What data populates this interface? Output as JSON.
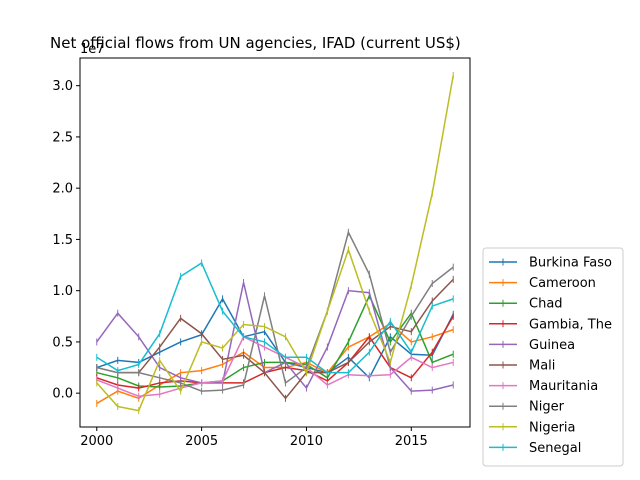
{
  "chart_data": {
    "type": "line",
    "title": "Net official flows from UN agencies, IFAD (current US$)",
    "xlabel": "",
    "ylabel": "",
    "y_offset_label": "1e7",
    "xlim": [
      1999.2,
      2017.8
    ],
    "ylim": [
      -0.33,
      3.27
    ],
    "x_ticks": [
      2000,
      2005,
      2010,
      2015
    ],
    "y_ticks": [
      0.0,
      0.5,
      1.0,
      1.5,
      2.0,
      2.5,
      3.0
    ],
    "y_tick_labels": [
      "0.0",
      "0.5",
      "1.0",
      "1.5",
      "2.0",
      "2.5",
      "3.0"
    ],
    "legend_position": "right",
    "grid": false,
    "x": [
      2000,
      2001,
      2002,
      2003,
      2004,
      2005,
      2006,
      2007,
      2008,
      2009,
      2010,
      2011,
      2012,
      2013,
      2014,
      2015,
      2016,
      2017
    ],
    "series": [
      {
        "name": "Burkina Faso",
        "color": "#1f77b4",
        "values": [
          0.25,
          0.32,
          0.3,
          0.4,
          0.5,
          0.57,
          0.92,
          0.55,
          0.6,
          0.3,
          0.25,
          0.2,
          0.35,
          0.15,
          0.55,
          0.38,
          0.37,
          0.77
        ]
      },
      {
        "name": "Cameroon",
        "color": "#ff7f0e",
        "values": [
          -0.1,
          0.02,
          -0.05,
          0.08,
          0.2,
          0.22,
          0.28,
          0.4,
          0.25,
          0.25,
          0.3,
          0.2,
          0.45,
          0.55,
          0.68,
          0.5,
          0.55,
          0.62
        ]
      },
      {
        "name": "Chad",
        "color": "#2ca02c",
        "values": [
          0.2,
          0.15,
          0.07,
          0.06,
          0.07,
          0.1,
          0.12,
          0.25,
          0.3,
          0.3,
          0.28,
          0.15,
          0.5,
          0.95,
          0.5,
          0.78,
          0.3,
          0.38
        ]
      },
      {
        "name": "Gambia, The",
        "color": "#d62728",
        "values": [
          0.15,
          0.08,
          0.05,
          0.1,
          0.12,
          0.1,
          0.1,
          0.1,
          0.2,
          0.25,
          0.22,
          0.12,
          0.3,
          0.55,
          0.25,
          0.15,
          0.4,
          0.75
        ]
      },
      {
        "name": "Guinea",
        "color": "#9467bd",
        "values": [
          0.5,
          0.78,
          0.55,
          0.25,
          0.15,
          0.1,
          0.1,
          1.08,
          0.2,
          0.3,
          0.05,
          0.45,
          1.0,
          0.98,
          0.25,
          0.02,
          0.03,
          0.08
        ]
      },
      {
        "name": "Mali",
        "color": "#8c564b",
        "values": [
          0.25,
          0.2,
          0.2,
          0.45,
          0.73,
          0.58,
          0.33,
          0.37,
          0.2,
          -0.05,
          0.2,
          0.2,
          0.3,
          0.5,
          0.65,
          0.6,
          0.9,
          1.11
        ]
      },
      {
        "name": "Mauritania",
        "color": "#e377c2",
        "values": [
          0.13,
          0.05,
          -0.03,
          -0.01,
          0.05,
          0.1,
          0.12,
          0.55,
          0.45,
          0.35,
          0.25,
          0.08,
          0.18,
          0.17,
          0.18,
          0.35,
          0.25,
          0.3
        ]
      },
      {
        "name": "Niger",
        "color": "#7f7f7f",
        "values": [
          0.25,
          0.2,
          0.2,
          0.15,
          0.1,
          0.02,
          0.03,
          0.08,
          0.95,
          0.1,
          0.25,
          0.8,
          1.57,
          1.16,
          0.4,
          0.75,
          1.07,
          1.23
        ]
      },
      {
        "name": "Nigeria",
        "color": "#bcbd22",
        "values": [
          0.1,
          -0.13,
          -0.17,
          0.32,
          0.02,
          0.5,
          0.44,
          0.67,
          0.65,
          0.55,
          0.2,
          0.8,
          1.4,
          0.8,
          0.3,
          1.05,
          1.95,
          3.1
        ]
      },
      {
        "name": "Senegal",
        "color": "#17becf",
        "values": [
          0.35,
          0.22,
          0.28,
          0.58,
          1.14,
          1.27,
          0.8,
          0.55,
          0.5,
          0.35,
          0.35,
          0.2,
          0.2,
          0.4,
          0.7,
          0.4,
          0.85,
          0.92
        ]
      }
    ]
  }
}
